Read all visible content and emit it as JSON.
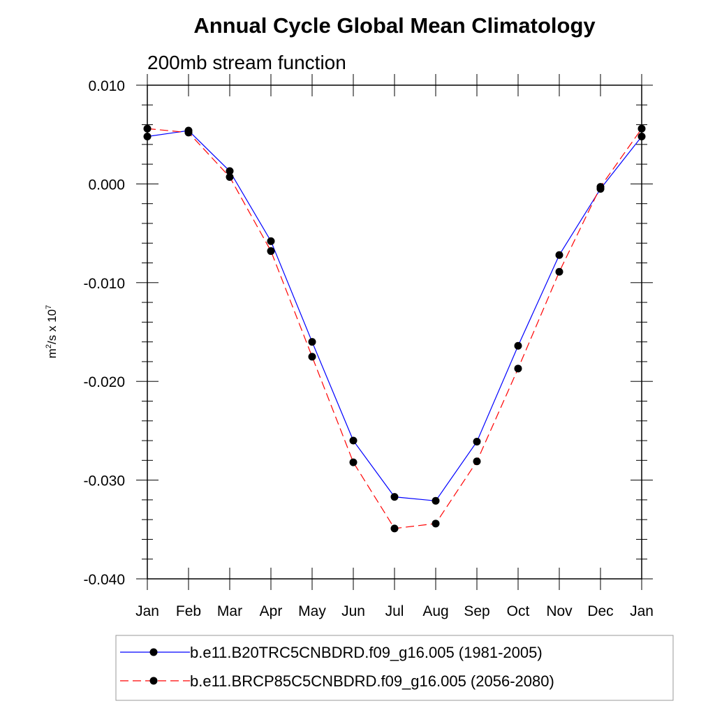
{
  "chart_data": {
    "type": "line",
    "title": "Annual Cycle Global Mean Climatology",
    "subtitle": "200mb stream function",
    "ylabel": {
      "base": "m",
      "sup1": "2",
      "mid": "/s x 10",
      "sup2": "7"
    },
    "xlabel": "",
    "categories": [
      "Jan",
      "Feb",
      "Mar",
      "Apr",
      "May",
      "Jun",
      "Jul",
      "Aug",
      "Sep",
      "Oct",
      "Nov",
      "Dec",
      "Jan"
    ],
    "ylim": [
      -0.04,
      0.01
    ],
    "yticks": [
      0.01,
      0.0,
      -0.01,
      -0.02,
      -0.03,
      -0.04
    ],
    "ytick_labels": [
      "0.010",
      "0.000",
      "-0.010",
      "-0.020",
      "-0.030",
      "-0.040"
    ],
    "grid": false,
    "legend_position": "bottom",
    "series": [
      {
        "name": "b.e11.B20TRC5CNBDRD.f09_g16.005 (1981-2005)",
        "color": "#0000ff",
        "line_style": "solid",
        "marker": "filled-circle",
        "values": [
          0.0048,
          0.0054,
          0.0013,
          -0.0058,
          -0.016,
          -0.026,
          -0.0317,
          -0.0321,
          -0.0261,
          -0.0164,
          -0.0072,
          -0.0005,
          0.0048
        ]
      },
      {
        "name": "b.e11.BRCP85C5CNBDRD.f09_g16.005 (2056-2080)",
        "color": "#ff0000",
        "line_style": "dashed",
        "marker": "filled-circle",
        "values": [
          0.0056,
          0.0052,
          0.0007,
          -0.0068,
          -0.0175,
          -0.0282,
          -0.0349,
          -0.0344,
          -0.0281,
          -0.0187,
          -0.0089,
          -0.0003,
          0.0056
        ]
      }
    ]
  }
}
